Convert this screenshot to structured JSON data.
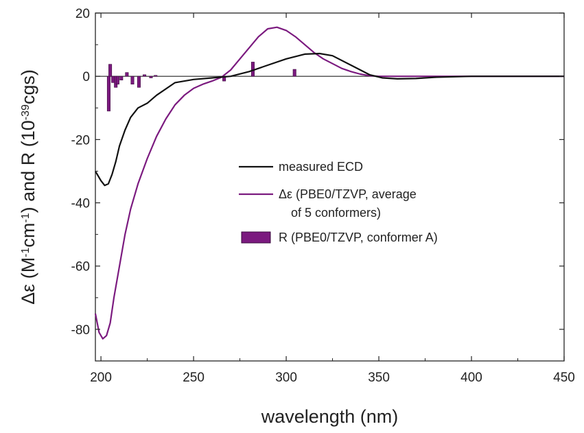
{
  "chart_data": {
    "type": "line",
    "title": "",
    "xlabel": "wavelength (nm)",
    "ylabel_parts": {
      "prefix": "Δε (M",
      "exp1": "-1",
      "mid": "cm",
      "exp2": "-1",
      "mid2": ") and R (10",
      "exp3": "-39",
      "suffix": "cgs)"
    },
    "xlim": [
      197,
      450
    ],
    "ylim": [
      -90,
      20
    ],
    "xticks": [
      200,
      250,
      300,
      350,
      400,
      450
    ],
    "yticks": [
      20,
      0,
      -20,
      -40,
      -60,
      -80
    ],
    "grid": false,
    "legend_position": "center-right",
    "series": [
      {
        "name": "measured ECD",
        "color": "#111111",
        "kind": "line",
        "x": [
          197,
          200,
          202,
          204,
          206,
          208,
          210,
          213,
          216,
          220,
          225,
          230,
          240,
          250,
          260,
          270,
          280,
          290,
          300,
          310,
          318,
          325,
          335,
          345,
          352,
          360,
          370,
          380,
          400,
          420,
          450
        ],
        "y": [
          -30,
          -33,
          -34.5,
          -34,
          -31,
          -27,
          -22,
          -17,
          -13,
          -10,
          -8.5,
          -6,
          -2,
          -1,
          -0.5,
          0,
          1.5,
          3.5,
          5.5,
          7,
          7.2,
          6.5,
          3.5,
          0.5,
          -0.5,
          -0.8,
          -0.7,
          -0.3,
          0,
          0,
          0
        ]
      },
      {
        "name": "Δε (PBE0/TZVP, average",
        "name_line2": "of 5 conformers)",
        "color": "#7b1a7f",
        "kind": "line",
        "x": [
          197,
          199,
          201,
          203,
          205,
          207,
          210,
          213,
          216,
          220,
          225,
          230,
          235,
          240,
          245,
          250,
          255,
          260,
          265,
          270,
          275,
          280,
          285,
          290,
          295,
          300,
          305,
          310,
          315,
          320,
          325,
          330,
          335,
          340,
          345,
          350,
          360,
          380,
          400,
          450
        ],
        "y": [
          -75,
          -81,
          -83,
          -82,
          -78,
          -70,
          -60,
          -50,
          -42,
          -34,
          -26,
          -19,
          -13.5,
          -9,
          -6,
          -3.8,
          -2.5,
          -1.5,
          -0.3,
          2,
          5.5,
          9,
          12.5,
          15,
          15.5,
          14.5,
          12.5,
          10,
          7.5,
          5.5,
          4,
          2.5,
          1.5,
          0.7,
          0.2,
          0,
          0,
          0,
          0,
          0
        ]
      },
      {
        "name": "R (PBE0/TZVP, conformer A)",
        "color": "#7b1a7f",
        "kind": "bar",
        "x": [
          204.2,
          205,
          206.5,
          208,
          209,
          211,
          214,
          217,
          220.5,
          223.5,
          227,
          229.5,
          266.5,
          282,
          304.5
        ],
        "y": [
          -11,
          3.8,
          -2,
          -3.5,
          -2.5,
          -1.2,
          1.2,
          -2.5,
          -3.5,
          0.5,
          -0.5,
          0.3,
          -1.5,
          4.5,
          2.2
        ]
      }
    ]
  }
}
